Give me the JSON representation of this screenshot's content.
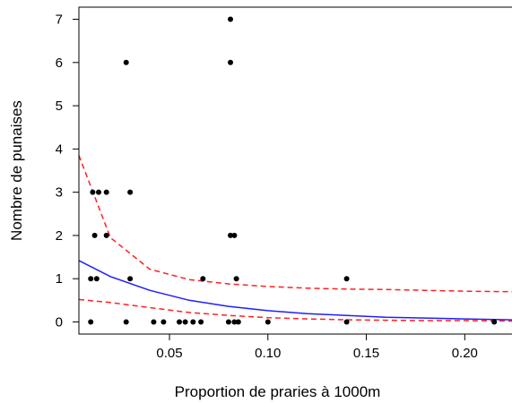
{
  "chart_data": {
    "type": "scatter",
    "title": "",
    "xlabel": "Proportion de praries à 1000m",
    "ylabel": "Nombre de punaises",
    "xlim": [
      0.004,
      0.224
    ],
    "ylim": [
      -0.28,
      7.28
    ],
    "x_ticks": [
      0.05,
      0.1,
      0.15,
      0.2
    ],
    "x_tick_labels": [
      "0.05",
      "0.10",
      "0.15",
      "0.20"
    ],
    "y_ticks": [
      0,
      1,
      2,
      3,
      4,
      5,
      6,
      7
    ],
    "y_tick_labels": [
      "0",
      "1",
      "2",
      "3",
      "4",
      "5",
      "6",
      "7"
    ],
    "grid": false,
    "legend": "none",
    "colors": {
      "points": "#000000",
      "fit": "#1f1fff",
      "ci": "#ff2020"
    },
    "points": [
      {
        "x": 0.01,
        "y": 0
      },
      {
        "x": 0.01,
        "y": 1
      },
      {
        "x": 0.011,
        "y": 3
      },
      {
        "x": 0.012,
        "y": 2
      },
      {
        "x": 0.013,
        "y": 1
      },
      {
        "x": 0.014,
        "y": 3
      },
      {
        "x": 0.018,
        "y": 3
      },
      {
        "x": 0.018,
        "y": 2
      },
      {
        "x": 0.028,
        "y": 6
      },
      {
        "x": 0.028,
        "y": 0
      },
      {
        "x": 0.03,
        "y": 3
      },
      {
        "x": 0.03,
        "y": 1
      },
      {
        "x": 0.042,
        "y": 0
      },
      {
        "x": 0.047,
        "y": 0
      },
      {
        "x": 0.055,
        "y": 0
      },
      {
        "x": 0.058,
        "y": 0
      },
      {
        "x": 0.062,
        "y": 0
      },
      {
        "x": 0.066,
        "y": 0
      },
      {
        "x": 0.067,
        "y": 1
      },
      {
        "x": 0.08,
        "y": 0
      },
      {
        "x": 0.081,
        "y": 7
      },
      {
        "x": 0.081,
        "y": 6
      },
      {
        "x": 0.081,
        "y": 2
      },
      {
        "x": 0.083,
        "y": 2
      },
      {
        "x": 0.083,
        "y": 0
      },
      {
        "x": 0.084,
        "y": 1
      },
      {
        "x": 0.085,
        "y": 0
      },
      {
        "x": 0.1,
        "y": 0
      },
      {
        "x": 0.14,
        "y": 1
      },
      {
        "x": 0.14,
        "y": 0
      },
      {
        "x": 0.215,
        "y": 0
      }
    ],
    "series": [
      {
        "x": [
          0.004,
          0.02,
          0.04,
          0.06,
          0.08,
          0.1,
          0.12,
          0.14,
          0.16,
          0.18,
          0.2,
          0.224
        ],
        "y": [
          1.42,
          1.05,
          0.73,
          0.5,
          0.36,
          0.26,
          0.19,
          0.15,
          0.11,
          0.09,
          0.07,
          0.05
        ],
        "style": "solid",
        "color": "#1f1fff"
      },
      {
        "x": [
          0.004,
          0.02,
          0.04,
          0.06,
          0.08,
          0.1,
          0.12,
          0.14,
          0.16,
          0.18,
          0.2,
          0.224
        ],
        "y": [
          3.85,
          1.95,
          1.22,
          0.98,
          0.88,
          0.82,
          0.78,
          0.76,
          0.75,
          0.73,
          0.71,
          0.7
        ],
        "style": "dashed",
        "color": "#ff2020"
      },
      {
        "x": [
          0.004,
          0.02,
          0.04,
          0.06,
          0.08,
          0.1,
          0.12,
          0.14,
          0.16,
          0.18,
          0.2,
          0.224
        ],
        "y": [
          0.52,
          0.45,
          0.33,
          0.22,
          0.15,
          0.1,
          0.07,
          0.05,
          0.04,
          0.03,
          0.03,
          0.02
        ],
        "style": "dashed",
        "color": "#ff2020"
      }
    ]
  }
}
